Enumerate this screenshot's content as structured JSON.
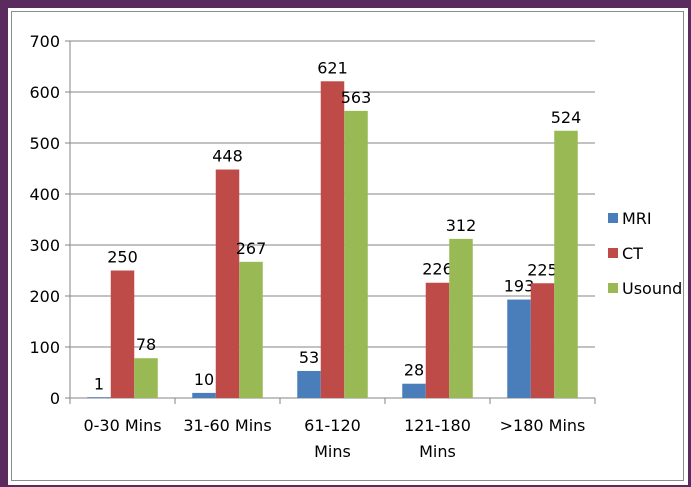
{
  "chart_data": {
    "type": "bar",
    "categories": [
      "0-30 Mins",
      "31-60 Mins",
      "61-120 Mins",
      "121-180 Mins",
      ">180 Mins"
    ],
    "series": [
      {
        "name": "MRI",
        "values": [
          1,
          10,
          53,
          28,
          193
        ],
        "color": "#4a7ebb"
      },
      {
        "name": "CT",
        "values": [
          250,
          448,
          621,
          226,
          225
        ],
        "color": "#be4b48"
      },
      {
        "name": "Usound",
        "values": [
          78,
          267,
          563,
          312,
          524
        ],
        "color": "#98b954"
      }
    ],
    "ylim": [
      0,
      700
    ],
    "yticks": [
      0,
      100,
      200,
      300,
      400,
      500,
      600,
      700
    ],
    "grid": true,
    "legend": "right",
    "data_labels": true
  },
  "colors": {
    "border": "#5b2a5e",
    "gridline": "#868686"
  }
}
